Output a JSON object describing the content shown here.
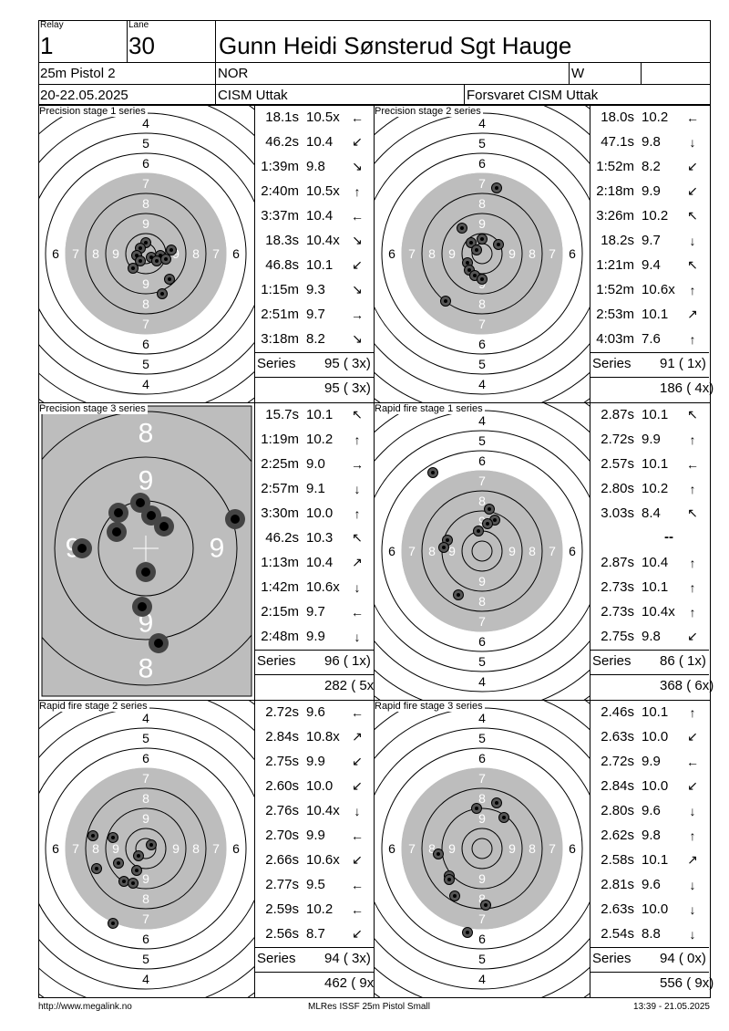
{
  "header": {
    "relay_label": "Relay",
    "relay": "1",
    "lane_label": "Lane",
    "lane": "30",
    "name": "Gunn Heidi Sønsterud Sgt Hauge",
    "event": "25m Pistol 2",
    "nation": "NOR",
    "gender": "W",
    "dates": "20-22.05.2025",
    "competition": "CISM Uttak",
    "club": "Forsvaret CISM Uttak"
  },
  "panels": [
    {
      "title": "Precision stage 1 series",
      "series_label": "Series",
      "series": "95 ( 3x)",
      "total": "95 ( 3x)",
      "shots": [
        [
          "18.1s",
          "10.5x",
          "←"
        ],
        [
          "46.2s",
          "10.4",
          "↙"
        ],
        [
          "1:39m",
          "9.8",
          "↘"
        ],
        [
          "2:40m",
          "10.5x",
          "↑"
        ],
        [
          "3:37m",
          "10.4",
          "←"
        ],
        [
          "18.3s",
          "10.4x",
          "↘"
        ],
        [
          "46.8s",
          "10.1",
          "↙"
        ],
        [
          "1:15m",
          "9.3",
          "↘"
        ],
        [
          "2:51m",
          "9.7",
          "→"
        ],
        [
          "3:18m",
          "8.2",
          "↘"
        ]
      ]
    },
    {
      "title": "Precision stage 2 series",
      "series_label": "Series",
      "series": "91 ( 1x)",
      "total": "186 ( 4x)",
      "shots": [
        [
          "18.0s",
          "10.2",
          "←"
        ],
        [
          "47.1s",
          "9.8",
          "↓"
        ],
        [
          "1:52m",
          "8.2",
          "↙"
        ],
        [
          "2:18m",
          "9.9",
          "↙"
        ],
        [
          "3:26m",
          "10.2",
          "↖"
        ],
        [
          "18.2s",
          "9.7",
          "↓"
        ],
        [
          "1:21m",
          "9.4",
          "↖"
        ],
        [
          "1:52m",
          "10.6x",
          "↑"
        ],
        [
          "2:53m",
          "10.1",
          "↗"
        ],
        [
          "4:03m",
          "7.6",
          "↑"
        ]
      ]
    },
    {
      "title": "Precision stage 3 series",
      "series_label": "Series",
      "series": "96 ( 1x)",
      "total": "282 ( 5x)",
      "shots": [
        [
          "15.7s",
          "10.1",
          "↖"
        ],
        [
          "1:19m",
          "10.2",
          "↑"
        ],
        [
          "2:25m",
          "9.0",
          "→"
        ],
        [
          "2:57m",
          "9.1",
          "↓"
        ],
        [
          "3:30m",
          "10.0",
          "↑"
        ],
        [
          "46.2s",
          "10.3",
          "↖"
        ],
        [
          "1:13m",
          "10.4",
          "↗"
        ],
        [
          "1:42m",
          "10.6x",
          "↓"
        ],
        [
          "2:15m",
          "9.7",
          "←"
        ],
        [
          "2:48m",
          "9.9",
          "↓"
        ]
      ]
    },
    {
      "title": "Rapid fire stage 1 series",
      "series_label": "Series",
      "series": "86 ( 1x)",
      "total": "368 ( 6x)",
      "separator": "--",
      "shots": [
        [
          "2.87s",
          "10.1",
          "↖"
        ],
        [
          "2.72s",
          "9.9",
          "↑"
        ],
        [
          "2.57s",
          "10.1",
          "←"
        ],
        [
          "2.80s",
          "10.2",
          "↑"
        ],
        [
          "3.03s",
          "8.4",
          "↖"
        ],
        [
          "",
          "",
          ""
        ],
        [
          "2.87s",
          "10.4",
          "↑"
        ],
        [
          "2.73s",
          "10.1",
          "↑"
        ],
        [
          "2.73s",
          "10.4x",
          "↑"
        ],
        [
          "2.75s",
          "9.8",
          "↙"
        ]
      ]
    },
    {
      "title": "Rapid fire stage 2 series",
      "series_label": "Series",
      "series": "94 ( 3x)",
      "total": "462 ( 9x)",
      "shots": [
        [
          "2.72s",
          "9.6",
          "←"
        ],
        [
          "2.84s",
          "10.8x",
          "↗"
        ],
        [
          "2.75s",
          "9.9",
          "↙"
        ],
        [
          "2.60s",
          "10.0",
          "↙"
        ],
        [
          "2.76s",
          "10.4x",
          "↓"
        ],
        [
          "2.70s",
          "9.9",
          "←"
        ],
        [
          "2.66s",
          "10.6x",
          "↙"
        ],
        [
          "2.77s",
          "9.5",
          "←"
        ],
        [
          "2.59s",
          "10.2",
          "←"
        ],
        [
          "2.56s",
          "8.7",
          "↙"
        ]
      ]
    },
    {
      "title": "Rapid fire stage 3 series",
      "series_label": "Series",
      "series": "94 ( 0x)",
      "total": "556 ( 9x)",
      "shots": [
        [
          "2.46s",
          "10.1",
          "↑"
        ],
        [
          "2.63s",
          "10.0",
          "↙"
        ],
        [
          "2.72s",
          "9.9",
          "←"
        ],
        [
          "2.84s",
          "10.0",
          "↙"
        ],
        [
          "2.80s",
          "9.6",
          "↓"
        ],
        [
          "2.62s",
          "9.8",
          "↑"
        ],
        [
          "2.58s",
          "10.1",
          "↗"
        ],
        [
          "2.81s",
          "9.6",
          "↓"
        ],
        [
          "2.63s",
          "10.0",
          "↓"
        ],
        [
          "2.54s",
          "8.8",
          "↓"
        ]
      ]
    }
  ],
  "footer": {
    "url": "http://www.megalink.no",
    "software": "MLRes ISSF 25m Pistol Small",
    "timestamp": "13:39 - 21.05.2025"
  }
}
